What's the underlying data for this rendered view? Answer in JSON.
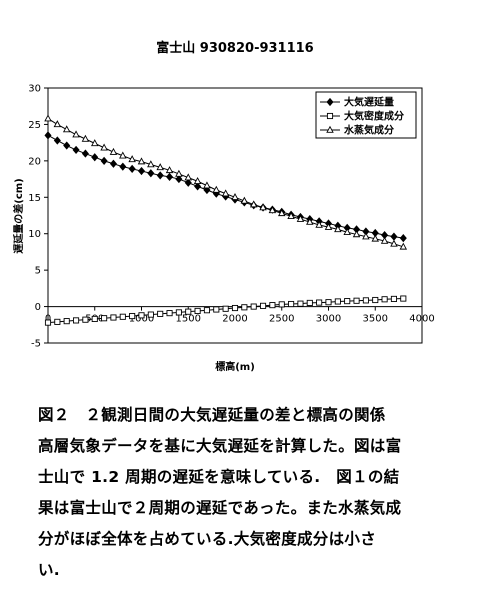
{
  "chart_data": {
    "type": "line",
    "title": "富士山  930820-931116",
    "xlabel": "標高(m)",
    "ylabel": "遅延量の差(cm)",
    "xlim": [
      0,
      4000
    ],
    "ylim": [
      -5,
      30
    ],
    "xticks": [
      0,
      500,
      1000,
      1500,
      2000,
      2500,
      3000,
      3500,
      4000
    ],
    "yticks": [
      -5,
      0,
      5,
      10,
      15,
      20,
      25,
      30
    ],
    "grid": false,
    "legend_position": "top-right",
    "x": [
      0,
      100,
      200,
      300,
      400,
      500,
      600,
      700,
      800,
      900,
      1000,
      1100,
      1200,
      1300,
      1400,
      1500,
      1600,
      1700,
      1800,
      1900,
      2000,
      2100,
      2200,
      2300,
      2400,
      2500,
      2600,
      2700,
      2800,
      2900,
      3000,
      3100,
      3200,
      3300,
      3400,
      3500,
      3600,
      3700,
      3800
    ],
    "series": [
      {
        "name": "大気遅延量",
        "marker": "diamond-filled",
        "values": [
          23.5,
          22.8,
          22.1,
          21.5,
          21.0,
          20.5,
          20.0,
          19.6,
          19.2,
          18.9,
          18.6,
          18.3,
          18.0,
          17.8,
          17.5,
          17.0,
          16.5,
          16.0,
          15.5,
          15.1,
          14.7,
          14.3,
          13.9,
          13.6,
          13.3,
          13.0,
          12.6,
          12.3,
          12.0,
          11.7,
          11.4,
          11.1,
          10.8,
          10.6,
          10.3,
          10.1,
          9.8,
          9.6,
          9.4
        ]
      },
      {
        "name": "大気密度成分",
        "marker": "square-open",
        "values": [
          -2.2,
          -2.1,
          -2.0,
          -1.9,
          -1.8,
          -1.7,
          -1.6,
          -1.5,
          -1.4,
          -1.3,
          -1.2,
          -1.1,
          -1.0,
          -0.9,
          -0.8,
          -0.7,
          -0.6,
          -0.5,
          -0.4,
          -0.3,
          -0.2,
          -0.1,
          0.0,
          0.1,
          0.2,
          0.3,
          0.35,
          0.4,
          0.5,
          0.55,
          0.6,
          0.7,
          0.75,
          0.8,
          0.85,
          0.9,
          1.0,
          1.05,
          1.1
        ]
      },
      {
        "name": "水蒸気成分",
        "marker": "triangle-open",
        "values": [
          25.8,
          25.0,
          24.3,
          23.6,
          23.0,
          22.4,
          21.8,
          21.2,
          20.7,
          20.2,
          19.9,
          19.5,
          19.1,
          18.7,
          18.2,
          17.7,
          17.2,
          16.6,
          16.0,
          15.5,
          15.0,
          14.5,
          14.0,
          13.6,
          13.2,
          12.8,
          12.4,
          12.0,
          11.6,
          11.2,
          10.9,
          10.6,
          10.2,
          9.9,
          9.6,
          9.3,
          9.0,
          8.6,
          8.2
        ]
      }
    ]
  },
  "caption": {
    "lines": [
      "図２　２観測日間の大気遅延量の差と標高の関係",
      "高層気象データを基に大気遅延を計算した。図は富",
      "士山で 1.2 周期の遅延を意味している.　図１の結",
      "果は富士山で２周期の遅延であった。また水蒸気成",
      "分がほぼ全体を占めている.大気密度成分は小さ",
      "い."
    ]
  }
}
